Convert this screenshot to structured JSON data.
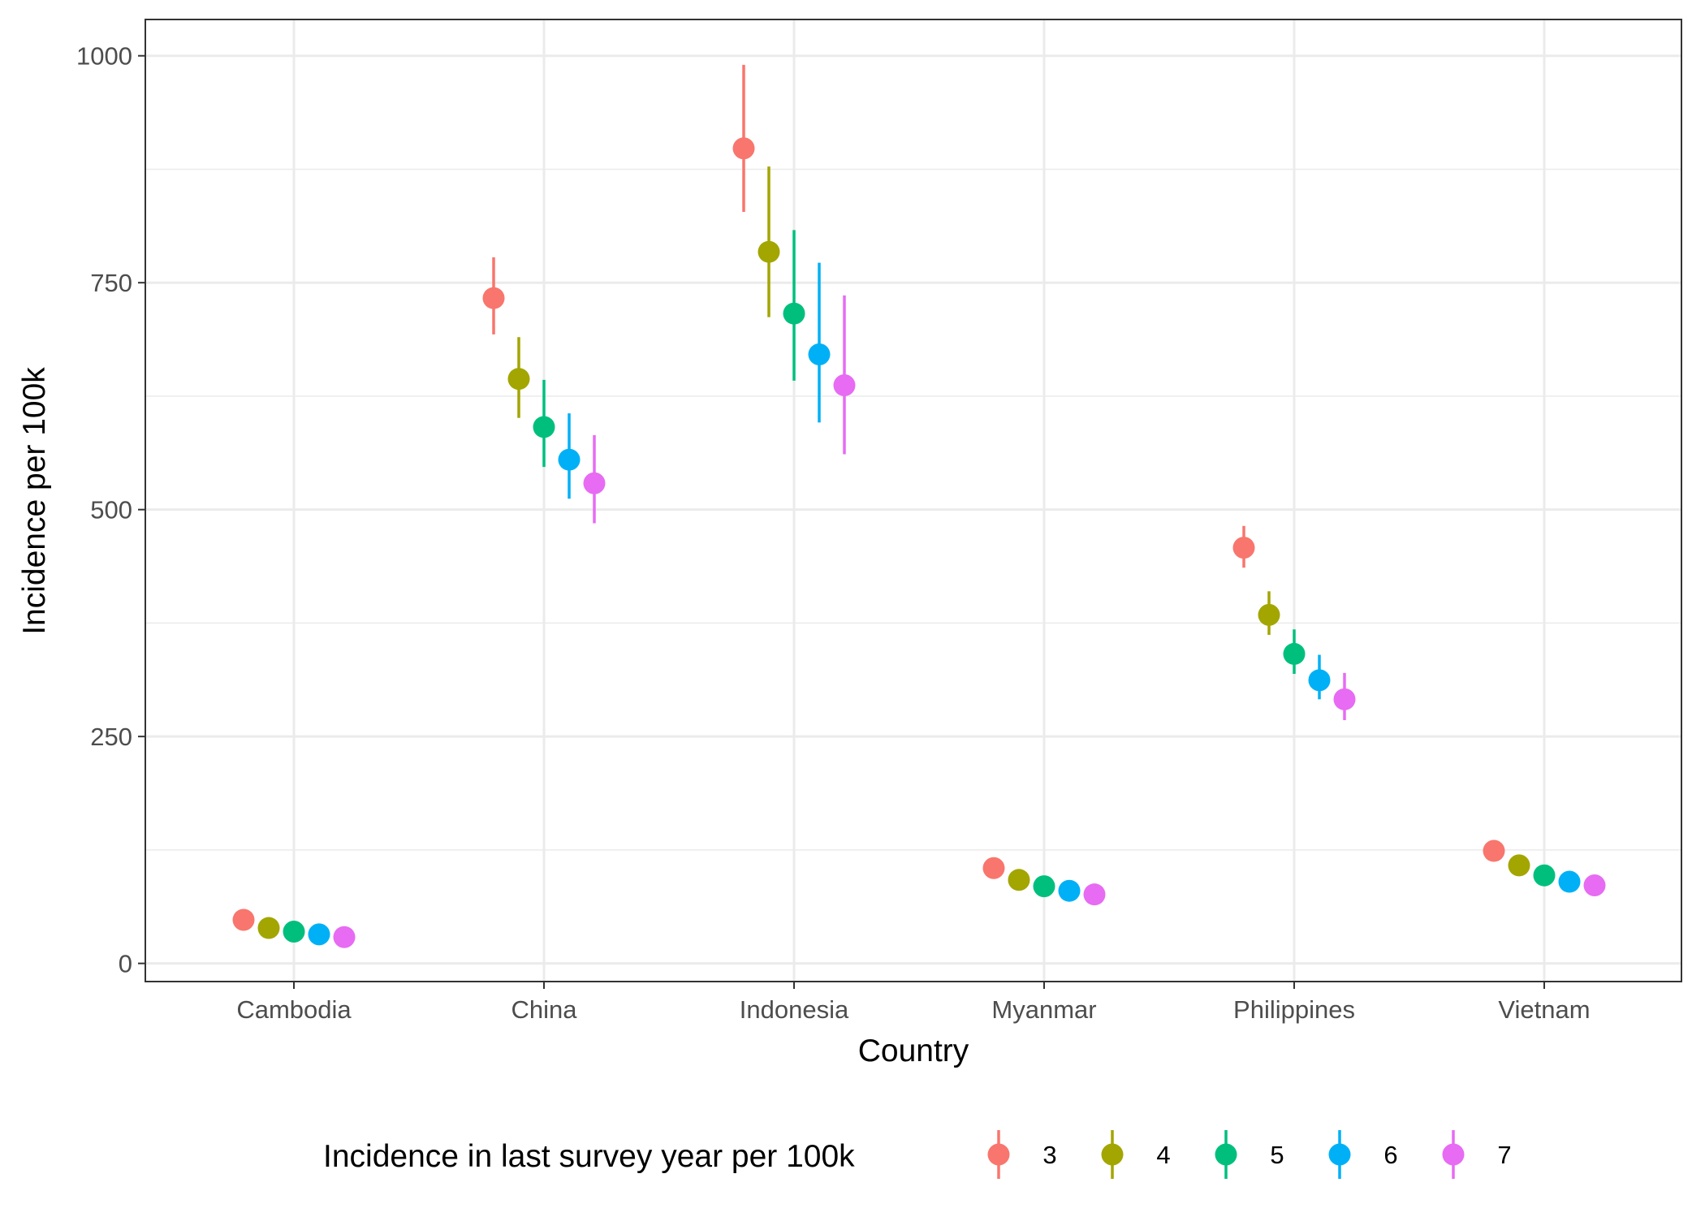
{
  "chart_data": {
    "type": "scatter",
    "title": "",
    "xlabel": "Country",
    "ylabel": "Incidence per 100k",
    "categories": [
      "Cambodia",
      "China",
      "Indonesia",
      "Myanmar",
      "Philippines",
      "Vietnam"
    ],
    "ylim": [
      -20,
      1040
    ],
    "yticks": [
      0,
      250,
      500,
      750,
      1000
    ],
    "grid": true,
    "legend": {
      "title": "Incidence in last survey year per 100k",
      "position": "bottom"
    },
    "series": [
      {
        "name": "3",
        "color": "#F8766D",
        "values": [
          48,
          733,
          898,
          105,
          458,
          124
        ],
        "lower": [
          44,
          693,
          828,
          98,
          436,
          117
        ],
        "upper": [
          52,
          778,
          990,
          112,
          482,
          131
        ]
      },
      {
        "name": "4",
        "color": "#A3A500",
        "values": [
          39,
          644,
          784,
          92,
          384,
          108
        ],
        "lower": [
          35,
          601,
          712,
          85,
          362,
          101
        ],
        "upper": [
          43,
          690,
          878,
          99,
          410,
          115
        ]
      },
      {
        "name": "5",
        "color": "#00BF7D",
        "values": [
          35,
          591,
          716,
          85,
          341,
          97
        ],
        "lower": [
          31,
          547,
          642,
          78,
          319,
          90
        ],
        "upper": [
          39,
          643,
          808,
          92,
          368,
          104
        ]
      },
      {
        "name": "6",
        "color": "#00B0F6",
        "values": [
          32,
          555,
          671,
          80,
          312,
          90
        ],
        "lower": [
          28,
          512,
          596,
          73,
          291,
          83
        ],
        "upper": [
          36,
          606,
          772,
          87,
          340,
          97
        ]
      },
      {
        "name": "7",
        "color": "#E76BF3",
        "values": [
          29,
          529,
          637,
          76,
          291,
          86
        ],
        "lower": [
          25,
          485,
          561,
          69,
          268,
          79
        ],
        "upper": [
          33,
          582,
          736,
          83,
          320,
          93
        ]
      }
    ]
  }
}
